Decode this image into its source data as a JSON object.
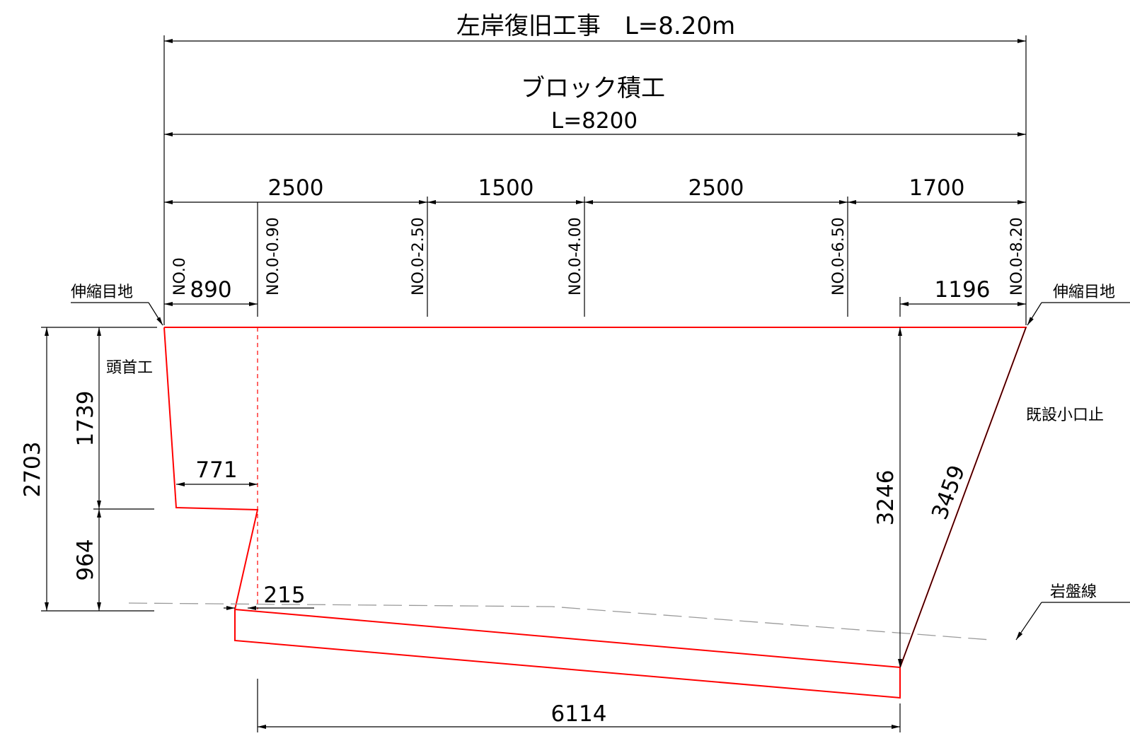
{
  "titles": {
    "main": "左岸復旧工事　L=8.20m",
    "block_work": "ブロック積工",
    "block_length": "L=8200"
  },
  "segments": [
    "2500",
    "1500",
    "2500",
    "1700"
  ],
  "stations": [
    "NO.0",
    "NO.0-0.90",
    "NO.0-2.50",
    "NO.0-4.00",
    "NO.0-6.50",
    "NO.0-8.20"
  ],
  "dimensions": {
    "left_offset": "890",
    "right_offset": "1196",
    "total_height": "2703",
    "upper_height": "1739",
    "lower_height": "964",
    "step_width": "771",
    "toe_width": "215",
    "base_length": "6114",
    "right_height": "3246",
    "slope_length": "3459"
  },
  "labels": {
    "expansion_joint_left": "伸縮目地",
    "expansion_joint_right": "伸縮目地",
    "head_work": "頭首工",
    "existing_weir": "既設小口止",
    "bedrock_line": "岩盤線"
  },
  "colors": {
    "outline": "#ff0000",
    "dimension": "#000000",
    "bedrock": "#9a9a9a"
  }
}
